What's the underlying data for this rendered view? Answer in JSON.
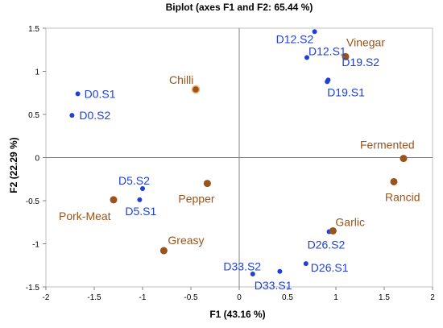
{
  "chart_data": {
    "type": "scatter",
    "title": "Biplot (axes F1 and F2: 65.44 %)",
    "xlabel": "F1 (43.16 %)",
    "ylabel": "F2 (22.29 %)",
    "xlim": [
      -2,
      2
    ],
    "ylim": [
      -1.5,
      1.5
    ],
    "xticks": [
      "-2",
      "-1.5",
      "-1",
      "-0.5",
      "0",
      "0.5",
      "1",
      "1.5",
      "2"
    ],
    "yticks": [
      "1.5",
      "1",
      "0.5",
      "0",
      "-0.5",
      "-1",
      "-1.5"
    ],
    "grid": false,
    "legend": "none",
    "series": [
      {
        "kind": "observations",
        "color": "#1f3fd6",
        "points": [
          {
            "label": "D0.S1",
            "x": -1.67,
            "y": 0.74
          },
          {
            "label": "D0.S2",
            "x": -1.73,
            "y": 0.49
          },
          {
            "label": "D5.S2",
            "x": -1.0,
            "y": -0.36
          },
          {
            "label": "D5.S1",
            "x": -1.03,
            "y": -0.49
          },
          {
            "label": "D12.S2",
            "x": 0.78,
            "y": 1.46
          },
          {
            "label": "D12.S1",
            "x": 0.7,
            "y": 1.16
          },
          {
            "label": "D19.S2",
            "x": 0.92,
            "y": 0.9
          },
          {
            "label": "D19.S1",
            "x": 0.91,
            "y": 0.88
          },
          {
            "label": "D26.S2",
            "x": 0.93,
            "y": -0.86
          },
          {
            "label": "D26.S1",
            "x": 0.69,
            "y": -1.23
          },
          {
            "label": "D33.S2",
            "x": 0.42,
            "y": -1.32
          },
          {
            "label": "D33.S1",
            "x": 0.14,
            "y": -1.35
          }
        ]
      },
      {
        "kind": "variables",
        "color": "#9a531a",
        "points": [
          {
            "label": "Chilli",
            "x": -0.45,
            "y": 0.79
          },
          {
            "label": "Vinegar",
            "x": 1.1,
            "y": 1.17
          },
          {
            "label": "Fermented",
            "x": 1.7,
            "y": -0.01
          },
          {
            "label": "Rancid",
            "x": 1.6,
            "y": -0.28
          },
          {
            "label": "Pepper",
            "x": -0.33,
            "y": -0.3
          },
          {
            "label": "Pork-Meat",
            "x": -1.3,
            "y": -0.49
          },
          {
            "label": "Garlic",
            "x": 0.97,
            "y": -0.85
          },
          {
            "label": "Greasy",
            "x": -0.78,
            "y": -1.08
          }
        ]
      }
    ]
  }
}
